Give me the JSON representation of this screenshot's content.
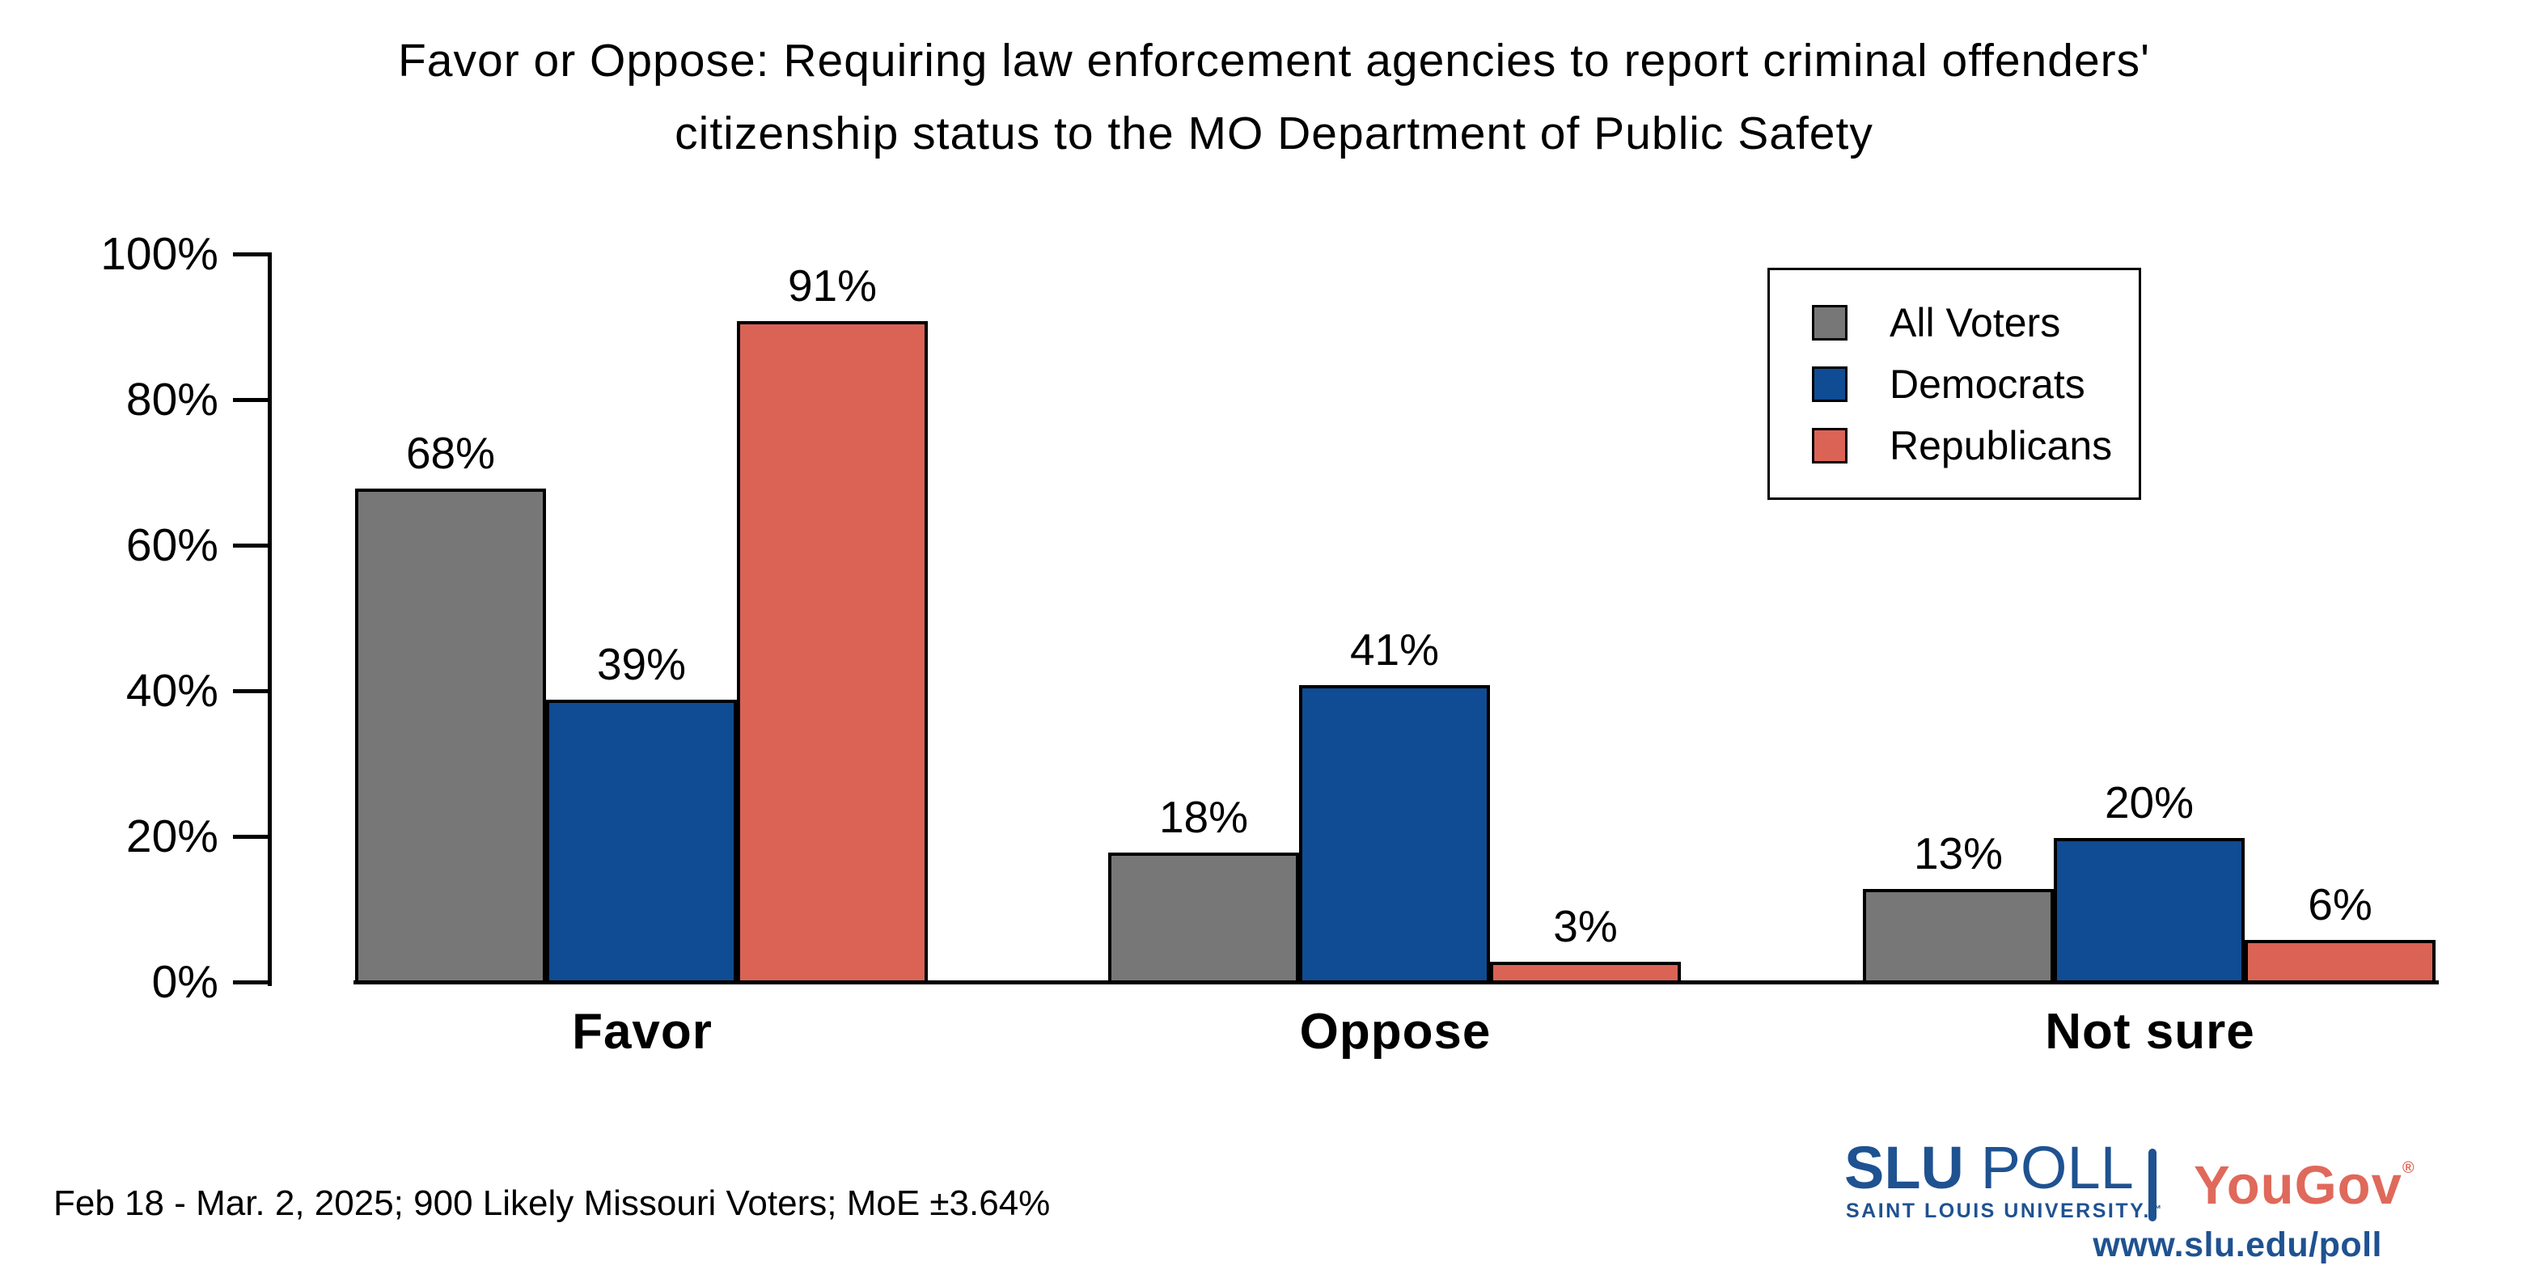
{
  "title": {
    "line1": "Favor or Oppose: Requiring law enforcement agencies to report criminal offenders'",
    "line2": "citizenship status to the MO Department of Public Safety"
  },
  "chart_data": {
    "type": "bar",
    "categories": [
      "Favor",
      "Oppose",
      "Not sure"
    ],
    "series": [
      {
        "name": "All Voters",
        "color": "#777777",
        "values": [
          68,
          18,
          13
        ]
      },
      {
        "name": "Democrats",
        "color": "#0F4C93",
        "values": [
          39,
          41,
          20
        ]
      },
      {
        "name": "Republicans",
        "color": "#DA6355",
        "values": [
          91,
          3,
          6
        ]
      }
    ],
    "value_suffix": "%",
    "ylabel": "",
    "xlabel": "",
    "ylim": [
      0,
      100
    ],
    "y_tick_labels": [
      "0%",
      "20%",
      "40%",
      "60%",
      "80%",
      "100%"
    ],
    "y_tick_step": 20,
    "grid": false,
    "legend_position": "upper right",
    "bar_outline_color": "#000000"
  },
  "footnote": "Feb 18 - Mar. 2, 2025; 900 Likely Missouri Voters; MoE ±3.64%",
  "branding": {
    "slu": "SLU",
    "poll": "POLL",
    "slu_sub": "SAINT LOUIS UNIVERSITY.",
    "slu_tm": "™",
    "yougov": "YouGov",
    "yougov_reg": "®",
    "url": "www.slu.edu/poll",
    "slu_blue": "#1F5291",
    "yougov_red": "#DF695B"
  }
}
